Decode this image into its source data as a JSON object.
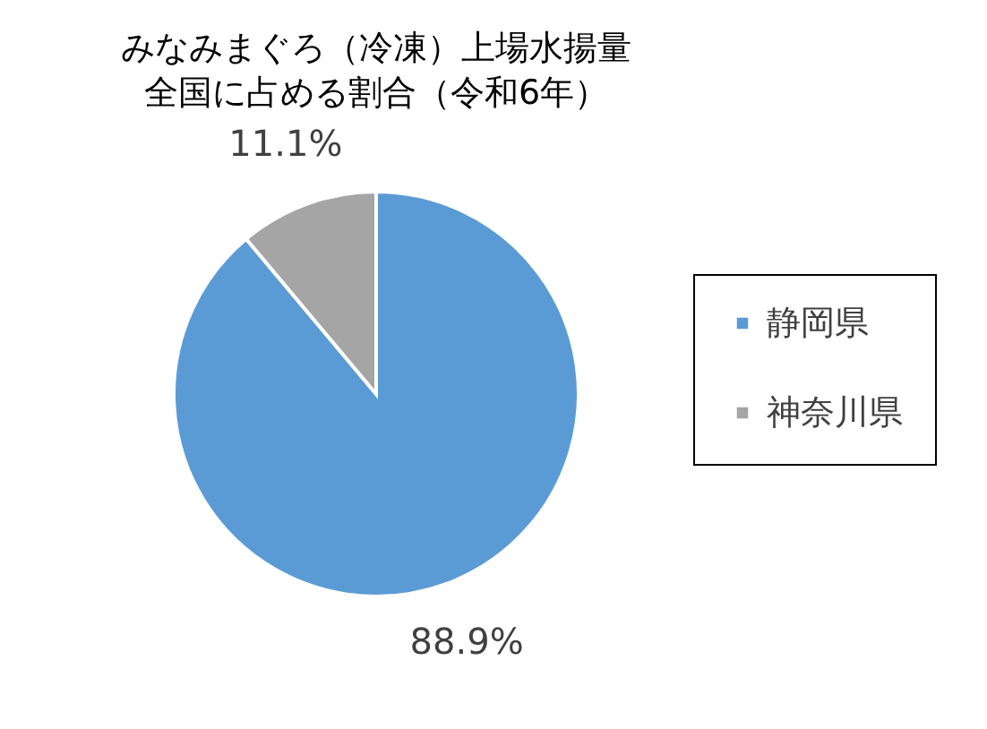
{
  "chart_data": {
    "type": "pie",
    "title": "みなみまぐろ（冷凍）上場水揚量",
    "subtitle": "全国に占める割合（令和6年）",
    "categories": [
      "静岡県",
      "神奈川県"
    ],
    "values": [
      88.9,
      11.1
    ],
    "colors": [
      "#5b9bd5",
      "#a5a5a5"
    ],
    "value_labels": [
      "88.9%",
      "11.1%"
    ],
    "legend": "right"
  }
}
